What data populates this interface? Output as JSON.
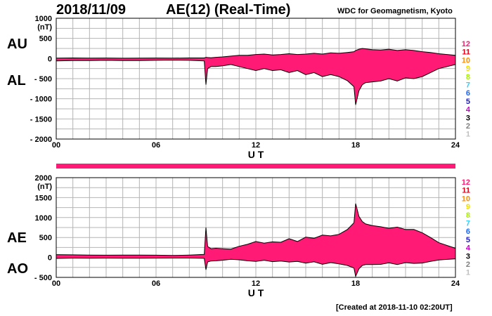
{
  "header": {
    "date": "2018/11/09",
    "title": "AE(12) (Real-Time)",
    "source": "WDC for Geomagnetism, Kyoto"
  },
  "footer": {
    "created": "[Created at 2018-11-10 02:20UT]"
  },
  "colors": {
    "fill": "#ff1a75",
    "outline": "#000000",
    "grid": "#b4b4b4"
  },
  "station_scale": [
    {
      "label": "12",
      "color": "#ff1a75"
    },
    {
      "label": "11",
      "color": "#e0001a"
    },
    {
      "label": "10",
      "color": "#ff8c00"
    },
    {
      "label": "9",
      "color": "#f0e000"
    },
    {
      "label": "8",
      "color": "#a8f000"
    },
    {
      "label": "7",
      "color": "#33ccff"
    },
    {
      "label": "6",
      "color": "#1a66ff"
    },
    {
      "label": "5",
      "color": "#1a1acc"
    },
    {
      "label": "4",
      "color": "#cc00cc"
    },
    {
      "label": "3",
      "color": "#000000"
    },
    {
      "label": "2",
      "color": "#808080"
    },
    {
      "label": "1",
      "color": "#c0c0c0"
    }
  ],
  "chart_data": [
    {
      "type": "area",
      "upper_label": "AU",
      "lower_label": "AL",
      "ylabel": "(nT)",
      "xlabel": "U T",
      "xlim": [
        0,
        24
      ],
      "ylim": [
        -2000,
        1000
      ],
      "yticks": [
        1000,
        500,
        0,
        -500,
        -1000,
        -1500,
        -2000
      ],
      "ytick_labels": [
        "1000",
        "500",
        "0",
        "- 500",
        "- 1000",
        "- 1500",
        "- 2000"
      ],
      "xticks": [
        0,
        6,
        12,
        18,
        24
      ],
      "xtick_labels": [
        "00",
        "06",
        "12",
        "18",
        "24"
      ],
      "grid": true,
      "x": [
        0,
        1,
        2,
        3,
        4,
        5,
        6,
        7,
        8,
        8.9,
        9.0,
        9.1,
        9.3,
        9.6,
        10,
        10.5,
        11,
        11.5,
        12,
        12.5,
        13,
        13.5,
        14,
        14.5,
        15,
        15.5,
        16,
        16.5,
        17,
        17.5,
        17.9,
        18.0,
        18.2,
        18.4,
        18.6,
        19,
        19.5,
        20,
        20.5,
        21,
        21.5,
        22,
        22.5,
        23,
        23.5,
        24
      ],
      "upper": [
        10,
        15,
        10,
        12,
        8,
        10,
        12,
        10,
        15,
        15,
        30,
        25,
        20,
        30,
        40,
        60,
        80,
        80,
        100,
        110,
        90,
        100,
        120,
        100,
        110,
        130,
        110,
        140,
        130,
        150,
        170,
        200,
        230,
        250,
        240,
        220,
        210,
        230,
        200,
        220,
        200,
        170,
        150,
        120,
        100,
        80
      ],
      "lower": [
        -60,
        -50,
        -50,
        -45,
        -50,
        -50,
        -45,
        -40,
        -45,
        -60,
        -650,
        -250,
        -200,
        -200,
        -180,
        -150,
        -200,
        -250,
        -300,
        -250,
        -300,
        -280,
        -350,
        -300,
        -400,
        -350,
        -450,
        -400,
        -450,
        -550,
        -700,
        -1150,
        -800,
        -650,
        -600,
        -580,
        -560,
        -500,
        -560,
        -480,
        -500,
        -450,
        -350,
        -250,
        -200,
        -150
      ]
    },
    {
      "type": "area",
      "upper_label": "AE",
      "lower_label": "AO",
      "ylabel": "(nT)",
      "xlabel": "U T",
      "xlim": [
        0,
        24
      ],
      "ylim": [
        -500,
        2000
      ],
      "yticks": [
        2000,
        1500,
        1000,
        500,
        0,
        -500
      ],
      "ytick_labels": [
        "2000",
        "1500",
        "1000",
        "500",
        "0",
        "- 500"
      ],
      "xticks": [
        0,
        6,
        12,
        18,
        24
      ],
      "xtick_labels": [
        "00",
        "06",
        "12",
        "18",
        "24"
      ],
      "grid": true,
      "x": [
        0,
        1,
        2,
        3,
        4,
        5,
        6,
        7,
        8,
        8.9,
        9.0,
        9.1,
        9.3,
        9.6,
        10,
        10.5,
        11,
        11.5,
        12,
        12.5,
        13,
        13.5,
        14,
        14.5,
        15,
        15.5,
        16,
        16.5,
        17,
        17.5,
        17.9,
        18.0,
        18.2,
        18.4,
        18.6,
        19,
        19.5,
        20,
        20.5,
        21,
        21.5,
        22,
        22.5,
        23,
        23.5,
        24
      ],
      "upper": [
        70,
        65,
        60,
        57,
        58,
        60,
        57,
        50,
        60,
        75,
        750,
        275,
        220,
        230,
        220,
        210,
        280,
        330,
        400,
        360,
        390,
        380,
        470,
        400,
        510,
        480,
        560,
        540,
        580,
        700,
        870,
        1350,
        1030,
        900,
        840,
        800,
        770,
        730,
        760,
        700,
        700,
        620,
        500,
        370,
        300,
        230
      ],
      "lower": [
        -25,
        -18,
        -20,
        -17,
        -21,
        -20,
        -17,
        -15,
        -15,
        -23,
        -310,
        -112,
        -90,
        -85,
        -70,
        -45,
        -60,
        -85,
        -100,
        -70,
        -105,
        -90,
        -115,
        -100,
        -145,
        -110,
        -170,
        -130,
        -160,
        -200,
        -265,
        -475,
        -285,
        -200,
        -180,
        -180,
        -175,
        -135,
        -180,
        -130,
        -150,
        -140,
        -100,
        -65,
        -50,
        -35
      ]
    }
  ]
}
